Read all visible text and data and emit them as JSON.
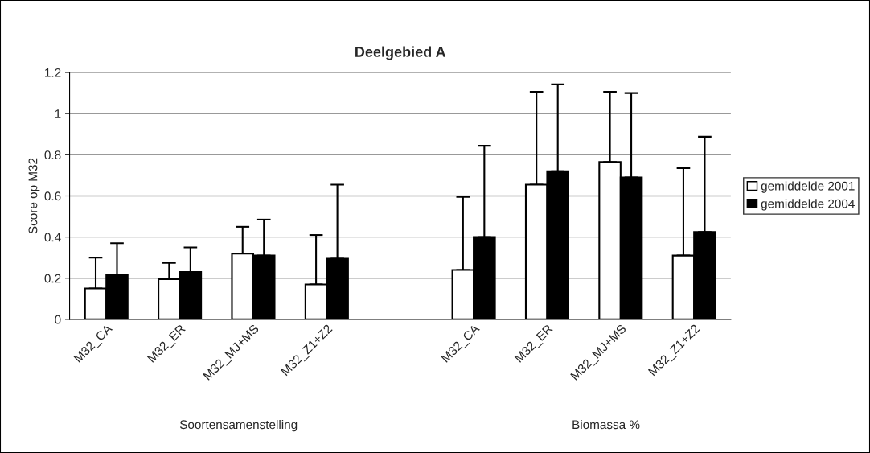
{
  "chart_data": {
    "type": "bar",
    "title": "Deelgebied A",
    "ylabel": "Score op M32",
    "categories": [
      "M32_CA",
      "M32_ER",
      "M32_MJ+MS",
      "M32_Z1+Z2",
      null,
      "M32_CA",
      "M32_ER",
      "M32_MJ+MS",
      "M32_Z1+Z2"
    ],
    "series": [
      {
        "name": "gemiddelde 2001",
        "color": "#ffffff",
        "values": [
          0.15,
          0.195,
          0.32,
          0.17,
          null,
          0.24,
          0.655,
          0.765,
          0.31
        ],
        "errors": [
          [
            0.15,
            0.3
          ],
          [
            0.195,
            0.275
          ],
          [
            0.32,
            0.45
          ],
          [
            0.17,
            0.41
          ],
          null,
          [
            0.24,
            0.595
          ],
          [
            0.655,
            1.106
          ],
          [
            0.765,
            1.106
          ],
          [
            0.31,
            0.735
          ]
        ]
      },
      {
        "name": "gemiddelde 2004",
        "color": "#000000",
        "values": [
          0.215,
          0.23,
          0.31,
          0.295,
          null,
          0.4,
          0.72,
          0.69,
          0.425
        ],
        "errors": [
          [
            0.215,
            0.37
          ],
          [
            0.23,
            0.35
          ],
          [
            0.31,
            0.485
          ],
          [
            0.295,
            0.655
          ],
          null,
          [
            0.4,
            0.844
          ],
          [
            0.72,
            1.142
          ],
          [
            0.69,
            1.1
          ],
          [
            0.425,
            0.888
          ]
        ]
      }
    ],
    "ylim": [
      0,
      1.2
    ],
    "yticks": [
      0,
      {
        "value": 0.2,
        "label": "0.2"
      },
      {
        "value": 0.4,
        "label": "0.4"
      },
      {
        "value": 0.6,
        "label": "0.6"
      },
      {
        "value": 0.8,
        "label": "0.8"
      },
      1,
      {
        "value": 1.2,
        "label": "1.2"
      }
    ],
    "grid": "y",
    "legend": "right",
    "annotations": [
      "Soortensamenstelling",
      "Biomassa %"
    ]
  }
}
